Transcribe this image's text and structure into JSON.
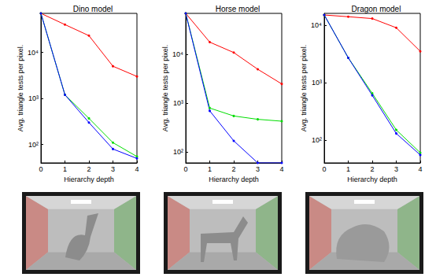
{
  "chart_data": [
    {
      "type": "line",
      "title": "Dino model",
      "x_label": "Hierarchy depth",
      "y_label": "Avg. triangle tests per pixel.",
      "x": [
        0,
        1,
        2,
        3,
        4
      ],
      "xlim": [
        0,
        4
      ],
      "xticks": [
        0,
        1,
        2,
        3,
        4
      ],
      "ylim": [
        40,
        70000
      ],
      "yticks": [
        {
          "value": 100,
          "label": "10²"
        },
        {
          "value": 1000,
          "label": "10³"
        },
        {
          "value": 10000,
          "label": "10⁴"
        }
      ],
      "log": "y",
      "grid": false,
      "marker": "circle",
      "series": [
        {
          "color": "#ff0000",
          "values": [
            70000,
            40000,
            23000,
            5000,
            3000
          ]
        },
        {
          "color": "#00dd00",
          "values": [
            70000,
            1200,
            370,
            110,
            55
          ]
        },
        {
          "color": "#0000ff",
          "values": [
            70000,
            1200,
            300,
            80,
            50
          ]
        }
      ]
    },
    {
      "type": "line",
      "title": "Horse model",
      "x_label": "Hierarchy depth",
      "y_label": "Avg. triangle tests per pixel.",
      "x": [
        0,
        1,
        2,
        3,
        4
      ],
      "xlim": [
        0,
        4
      ],
      "xticks": [
        0,
        1,
        2,
        3,
        4
      ],
      "ylim": [
        60,
        70000
      ],
      "yticks": [
        {
          "value": 100,
          "label": "10²"
        },
        {
          "value": 1000,
          "label": "10³"
        },
        {
          "value": 10000,
          "label": "10⁴"
        }
      ],
      "log": "y",
      "grid": false,
      "marker": "circle",
      "series": [
        {
          "color": "#ff0000",
          "values": [
            70000,
            18000,
            11000,
            5000,
            2500
          ]
        },
        {
          "color": "#00dd00",
          "values": [
            70000,
            800,
            550,
            470,
            430
          ]
        },
        {
          "color": "#0000ff",
          "values": [
            70000,
            700,
            170,
            60,
            60
          ]
        }
      ]
    },
    {
      "type": "line",
      "title": "Dragon model",
      "x_label": "Hierarchy depth",
      "y_label": "Avg. triangle tests per pixel.",
      "x": [
        0,
        1,
        2,
        3,
        4
      ],
      "xlim": [
        0,
        4
      ],
      "xticks": [
        0,
        1,
        2,
        3,
        4
      ],
      "ylim": [
        40,
        16000
      ],
      "yticks": [
        {
          "value": 100,
          "label": "10²"
        },
        {
          "value": 1000,
          "label": "10³"
        },
        {
          "value": 10000,
          "label": "10⁴"
        }
      ],
      "log": "y",
      "grid": false,
      "marker": "circle",
      "series": [
        {
          "color": "#ff0000",
          "values": [
            15000,
            14000,
            13000,
            9000,
            3500
          ]
        },
        {
          "color": "#00dd00",
          "values": [
            15000,
            2700,
            650,
            150,
            60
          ]
        },
        {
          "color": "#0000ff",
          "values": [
            15000,
            2700,
            600,
            130,
            55
          ]
        }
      ]
    }
  ]
}
